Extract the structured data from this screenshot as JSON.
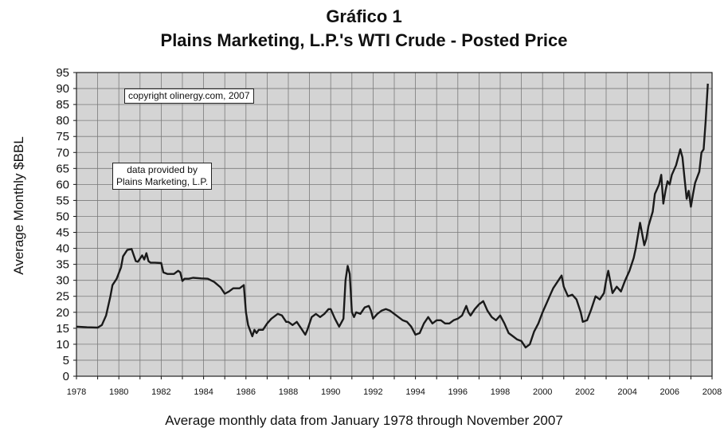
{
  "chart_data": {
    "type": "line",
    "title": "Gráfico 1",
    "subtitle": "Plains Marketing, L.P.'s WTI Crude - Posted Price",
    "xlabel": "Average monthly data from January 1978 through November 2007",
    "ylabel": "Average Monthly $BBL",
    "xlim": [
      1978,
      2008
    ],
    "ylim": [
      0,
      95
    ],
    "x_ticks": [
      "1978",
      "1980",
      "1982",
      "1984",
      "1986",
      "1988",
      "1990",
      "1992",
      "1994",
      "1996",
      "1998",
      "2000",
      "2002",
      "2004",
      "2006",
      "2008"
    ],
    "y_ticks": [
      0,
      5,
      10,
      15,
      20,
      25,
      30,
      35,
      40,
      45,
      50,
      55,
      60,
      65,
      70,
      75,
      80,
      85,
      90,
      95
    ],
    "grid": true,
    "annotations": [
      "copyright olinergy.com, 2007",
      "data provided by\nPlains Marketing, L.P."
    ],
    "series": [
      {
        "x": [
          1978.0,
          1978.5,
          1979.0,
          1979.2,
          1979.4,
          1979.6,
          1979.7,
          1979.9,
          1980.1,
          1980.2,
          1980.4,
          1980.6,
          1980.8,
          1980.9,
          1981.1,
          1981.2,
          1981.3,
          1981.4,
          1981.5,
          1981.7,
          1982.0,
          1982.1,
          1982.3,
          1982.6,
          1982.8,
          1982.9,
          1983.0,
          1983.1,
          1983.3,
          1983.5,
          1983.9,
          1984.2,
          1984.5,
          1984.8,
          1985.0,
          1985.2,
          1985.4,
          1985.5,
          1985.7,
          1985.9,
          1986.0,
          1986.1,
          1986.3,
          1986.4,
          1986.5,
          1986.6,
          1986.8,
          1987.0,
          1987.2,
          1987.3,
          1987.5,
          1987.7,
          1987.9,
          1988.0,
          1988.2,
          1988.4,
          1988.6,
          1988.8,
          1988.9,
          1989.1,
          1989.3,
          1989.5,
          1989.7,
          1989.9,
          1990.0,
          1990.2,
          1990.4,
          1990.6,
          1990.7,
          1990.8,
          1990.9,
          1991.0,
          1991.1,
          1991.2,
          1991.4,
          1991.6,
          1991.8,
          1991.9,
          1992.0,
          1992.2,
          1992.4,
          1992.6,
          1992.8,
          1993.0,
          1993.2,
          1993.4,
          1993.6,
          1993.8,
          1994.0,
          1994.2,
          1994.4,
          1994.6,
          1994.8,
          1995.0,
          1995.2,
          1995.4,
          1995.6,
          1995.8,
          1996.0,
          1996.2,
          1996.4,
          1996.5,
          1996.6,
          1996.8,
          1997.0,
          1997.2,
          1997.4,
          1997.6,
          1997.8,
          1998.0,
          1998.2,
          1998.4,
          1998.6,
          1998.8,
          1999.0,
          1999.2,
          1999.4,
          1999.6,
          1999.8,
          2000.0,
          2000.2,
          2000.4,
          2000.5,
          2000.7,
          2000.9,
          2001.0,
          2001.2,
          2001.4,
          2001.6,
          2001.8,
          2001.9,
          2002.1,
          2002.3,
          2002.5,
          2002.7,
          2002.9,
          2003.0,
          2003.1,
          2003.3,
          2003.5,
          2003.7,
          2003.9,
          2004.1,
          2004.3,
          2004.4,
          2004.5,
          2004.6,
          2004.8,
          2004.9,
          2005.0,
          2005.2,
          2005.3,
          2005.5,
          2005.6,
          2005.7,
          2005.8,
          2005.9,
          2006.0,
          2006.1,
          2006.3,
          2006.5,
          2006.6,
          2006.7,
          2006.8,
          2006.9,
          2007.0,
          2007.1,
          2007.2,
          2007.4,
          2007.5,
          2007.6,
          2007.7,
          2007.8
        ],
        "y": [
          15.5,
          15.3,
          15.2,
          16.0,
          19.0,
          25.0,
          28.5,
          30.5,
          34.0,
          37.5,
          39.5,
          39.8,
          36.0,
          35.8,
          37.8,
          36.5,
          38.5,
          36.0,
          35.5,
          35.5,
          35.4,
          32.5,
          32.0,
          32.0,
          33.0,
          32.5,
          29.8,
          30.5,
          30.5,
          30.8,
          30.6,
          30.5,
          29.5,
          27.8,
          25.8,
          26.5,
          27.5,
          27.5,
          27.5,
          28.5,
          20.0,
          16.0,
          12.5,
          14.5,
          13.5,
          14.5,
          14.5,
          16.5,
          18.0,
          18.5,
          19.5,
          19.0,
          17.0,
          17.0,
          16.0,
          17.0,
          15.0,
          13.0,
          14.5,
          18.5,
          19.5,
          18.5,
          19.5,
          21.0,
          21.0,
          18.0,
          15.5,
          18.0,
          30.0,
          34.5,
          32.0,
          20.0,
          18.5,
          20.0,
          19.5,
          21.5,
          22.0,
          20.5,
          18.0,
          19.5,
          20.5,
          21.0,
          20.5,
          19.5,
          18.5,
          17.5,
          17.0,
          15.5,
          13.0,
          13.5,
          16.5,
          18.5,
          16.5,
          17.5,
          17.5,
          16.5,
          16.5,
          17.5,
          18.0,
          19.0,
          22.0,
          20.0,
          19.0,
          21.0,
          22.5,
          23.5,
          20.5,
          18.5,
          17.5,
          19.0,
          16.5,
          13.5,
          12.5,
          11.5,
          11.0,
          9.0,
          10.0,
          14.0,
          16.5,
          20.0,
          23.0,
          26.0,
          27.5,
          29.5,
          31.5,
          28.0,
          25.0,
          25.5,
          24.0,
          20.0,
          17.0,
          17.5,
          21.0,
          25.0,
          24.0,
          26.0,
          30.0,
          33.0,
          26.0,
          28.0,
          26.5,
          30.0,
          33.0,
          37.0,
          40.0,
          44.0,
          48.0,
          41.0,
          43.0,
          47.0,
          51.5,
          57.0,
          60.0,
          63.0,
          54.0,
          58.0,
          61.0,
          60.0,
          63.0,
          66.0,
          71.0,
          68.5,
          62.0,
          55.5,
          58.0,
          53.0,
          57.0,
          60.5,
          64.0,
          70.0,
          71.0,
          80.0,
          91.5
        ]
      }
    ]
  }
}
